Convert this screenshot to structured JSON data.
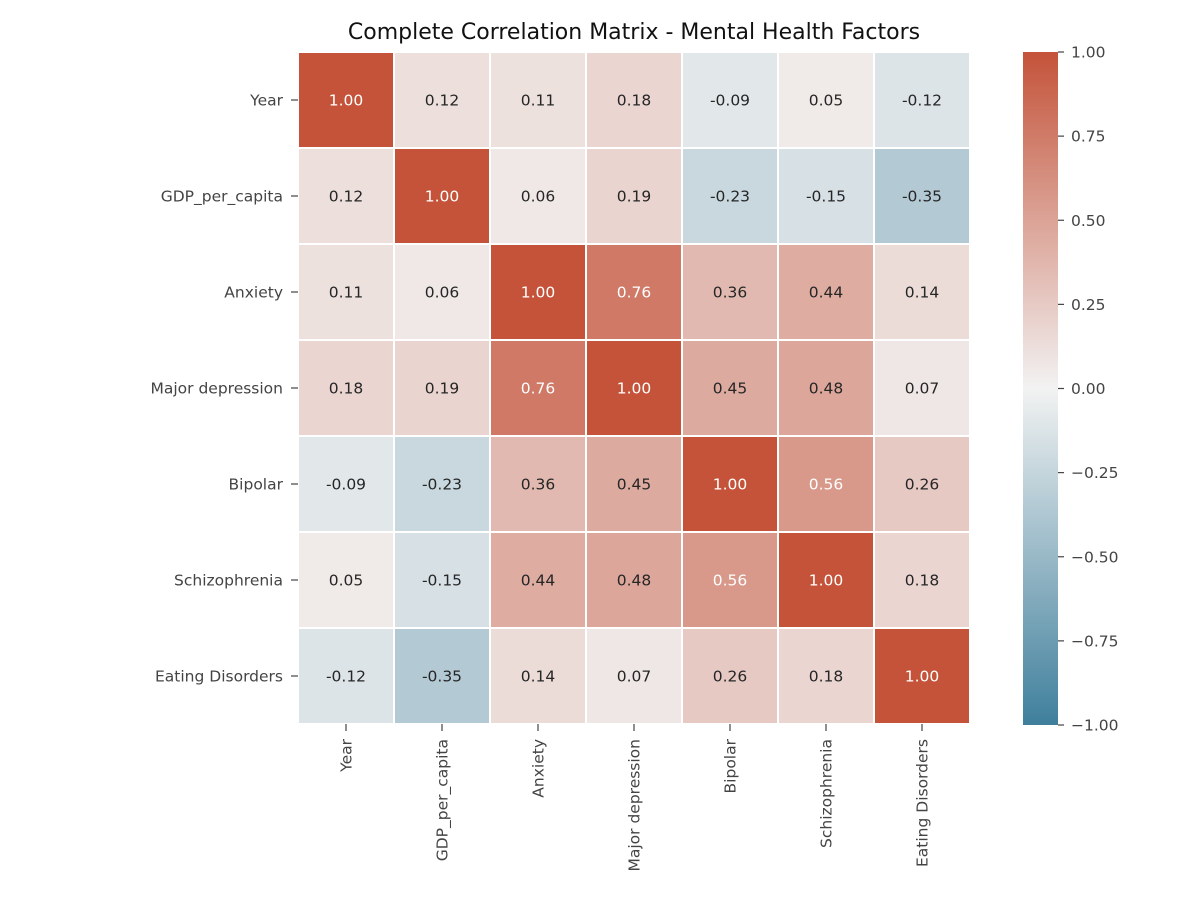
{
  "chart_data": {
    "type": "heatmap",
    "title": "Complete Correlation Matrix - Mental Health Factors",
    "row_labels": [
      "Year",
      "GDP_per_capita",
      "Anxiety",
      "Major depression",
      "Bipolar",
      "Schizophrenia",
      "Eating Disorders"
    ],
    "col_labels": [
      "Year",
      "GDP_per_capita",
      "Anxiety",
      "Major depression",
      "Bipolar",
      "Schizophrenia",
      "Eating Disorders"
    ],
    "values": [
      [
        1.0,
        0.12,
        0.11,
        0.18,
        -0.09,
        0.05,
        -0.12
      ],
      [
        0.12,
        1.0,
        0.06,
        0.19,
        -0.23,
        -0.15,
        -0.35
      ],
      [
        0.11,
        0.06,
        1.0,
        0.76,
        0.36,
        0.44,
        0.14
      ],
      [
        0.18,
        0.19,
        0.76,
        1.0,
        0.45,
        0.48,
        0.07
      ],
      [
        -0.09,
        -0.23,
        0.36,
        0.45,
        1.0,
        0.56,
        0.26
      ],
      [
        0.05,
        -0.15,
        0.44,
        0.48,
        0.56,
        1.0,
        0.18
      ],
      [
        -0.12,
        -0.35,
        0.14,
        0.07,
        0.26,
        0.18,
        1.0
      ]
    ],
    "value_format": "2 decimals",
    "vmin": -1.0,
    "vmax": 1.0,
    "colorbar": {
      "ticks": [
        1.0,
        0.75,
        0.5,
        0.25,
        0.0,
        -0.25,
        -0.5,
        -0.75,
        -1.0
      ],
      "tick_labels": [
        "1.00",
        "0.75",
        "0.50",
        "0.25",
        "0.00",
        "−0.25",
        "−0.50",
        "−0.75",
        "−1.00"
      ],
      "placement": "right"
    },
    "colormap": {
      "negative_end": "#3f7f9c",
      "center": "#f2f2f2",
      "positive_end": "#c4533a"
    },
    "grid": "white cell borders",
    "legend": "none"
  }
}
